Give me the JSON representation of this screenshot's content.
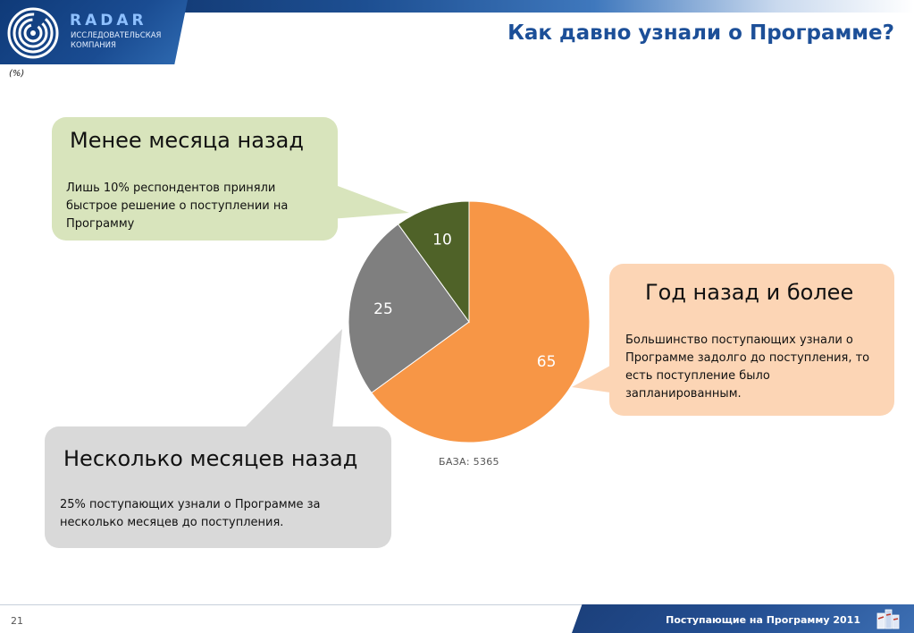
{
  "header": {
    "logo_word": "RADAR",
    "logo_sub": "ИССЛЕДОВАТЕЛЬСКАЯ КОМПАНИЯ",
    "title": "Как давно узнали о Программе?",
    "unit": "(%)"
  },
  "callouts": {
    "green": {
      "title": "Менее месяца назад",
      "text": "Лишь 10% респондентов приняли быстрое решение о поступлении на Программу"
    },
    "peach": {
      "title": "Год назад и более",
      "text": "Большинство поступающих узнали о Программе задолго до поступления, то есть поступление было запланированным."
    },
    "gray": {
      "title": "Несколько месяцев назад",
      "text": "25% поступающих узнали о Программе за несколько месяцев до поступления."
    }
  },
  "chart_data": {
    "type": "pie",
    "slices": [
      {
        "value": 65,
        "label": "65",
        "color": "#f79646"
      },
      {
        "value": 25,
        "label": "25",
        "color": "#7f7f7f"
      },
      {
        "value": 10,
        "label": "10",
        "color": "#4f6228"
      }
    ],
    "start": "12 o'clock",
    "direction": "clockwise",
    "legend": "none"
  },
  "base": "БАЗА: 5365",
  "footer": {
    "text": "Поступающие на Программу 2011",
    "page_number": "21"
  },
  "colors": {
    "title": "#1c4f98",
    "callout_green": "#d8e4bc",
    "callout_peach": "#fcd5b5",
    "callout_gray": "#d9d9d9"
  }
}
